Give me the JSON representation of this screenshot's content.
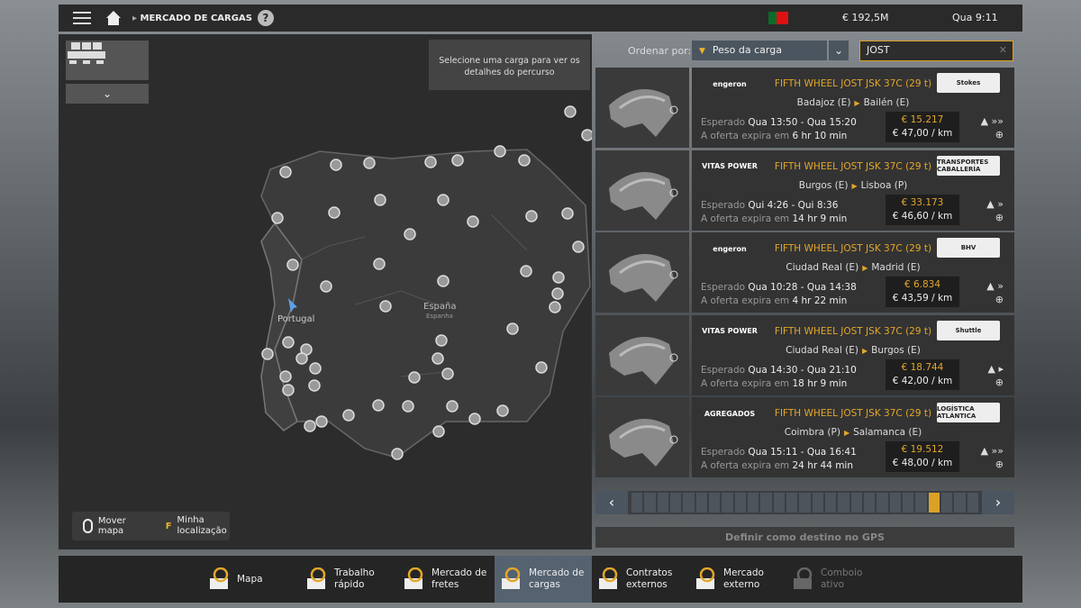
{
  "topbar": {
    "breadcrumb": "MERCADO DE CARGAS",
    "help": "?",
    "money": "€ 192,5M",
    "time": "Qua 9:11",
    "flag": "portugal-flag"
  },
  "map": {
    "tooltip": "Selecione uma carga para ver os detalhes do percurso",
    "country_pt": "Portugal",
    "country_es": "España",
    "country_es_sub": "Espanha",
    "legend_move": "Mover mapa",
    "legend_key": "F",
    "legend_location": "Minha localização"
  },
  "sort": {
    "label": "Ordenar por:",
    "value": "Peso da carga"
  },
  "search": {
    "value": "JOST",
    "placeholder": ""
  },
  "colors": {
    "accent": "#e3a72a",
    "active_nav": "#556270"
  },
  "cargo": [
    {
      "source_logo": "engeron",
      "title": "FIFTH WHEEL JOST JSK 37C (29 t)",
      "dest_logo": "Stokes",
      "from": "Badajoz (E)",
      "to": "Bailén (E)",
      "expected_label": "Esperado",
      "expected": "Qua 13:50 - Qua 15:20",
      "expires_label": "A oferta expira em",
      "expires": "6 hr 10 min",
      "price": "€ 15.217",
      "per_km": "€ 47,00 / km",
      "urgency": "»»"
    },
    {
      "source_logo": "VITAS POWER",
      "title": "FIFTH WHEEL JOST JSK 37C (29 t)",
      "dest_logo": "TRANSPORTES CABALLERÍA",
      "from": "Burgos (E)",
      "to": "Lisboa (P)",
      "expected_label": "Esperado",
      "expected": "Qui 4:26 - Qui 8:36",
      "expires_label": "A oferta expira em",
      "expires": "14 hr 9 min",
      "price": "€ 33.173",
      "per_km": "€ 46,60 / km",
      "urgency": "»"
    },
    {
      "source_logo": "engeron",
      "title": "FIFTH WHEEL JOST JSK 37C (29 t)",
      "dest_logo": "BHV",
      "from": "Ciudad Real (E)",
      "to": "Madrid (E)",
      "expected_label": "Esperado",
      "expected": "Qua 10:28 - Qua 14:38",
      "expires_label": "A oferta expira em",
      "expires": "4 hr 22 min",
      "price": "€ 6.834",
      "per_km": "€ 43,59 / km",
      "urgency": "»"
    },
    {
      "source_logo": "VITAS POWER",
      "title": "FIFTH WHEEL JOST JSK 37C (29 t)",
      "dest_logo": "Shuttle",
      "from": "Ciudad Real (E)",
      "to": "Burgos (E)",
      "expected_label": "Esperado",
      "expected": "Qua 14:30 - Qua 21:10",
      "expires_label": "A oferta expira em",
      "expires": "18 hr 9 min",
      "price": "€ 18.744",
      "per_km": "€ 42,00 / km",
      "urgency": "▸"
    },
    {
      "source_logo": "AGREGADOS",
      "title": "FIFTH WHEEL JOST JSK 37C (29 t)",
      "dest_logo": "LOGÍSTICA ATLÁNTICA",
      "from": "Coimbra (P)",
      "to": "Salamanca (E)",
      "expected_label": "Esperado",
      "expected": "Qua 15:11 - Qua 16:41",
      "expires_label": "A oferta expira em",
      "expires": "24 hr 44 min",
      "price": "€ 19.512",
      "per_km": "€ 48,00 / km",
      "urgency": "»»"
    }
  ],
  "pager": {
    "pages": 27,
    "current": 24
  },
  "gps_button": "Definir como destino no GPS",
  "nav": [
    {
      "label": "Mapa",
      "icon": "map-icon"
    },
    {
      "label": "Trabalho rápido",
      "icon": "quick-job-icon"
    },
    {
      "label": "Mercado de fretes",
      "icon": "freight-market-icon"
    },
    {
      "label": "Mercado de cargas",
      "icon": "cargo-market-icon",
      "active": true
    },
    {
      "label": "Contratos externos",
      "icon": "external-contracts-icon"
    },
    {
      "label": "Mercado externo",
      "icon": "external-market-icon"
    },
    {
      "label": "Comboio ativo",
      "icon": "convoy-icon",
      "disabled": true
    }
  ]
}
